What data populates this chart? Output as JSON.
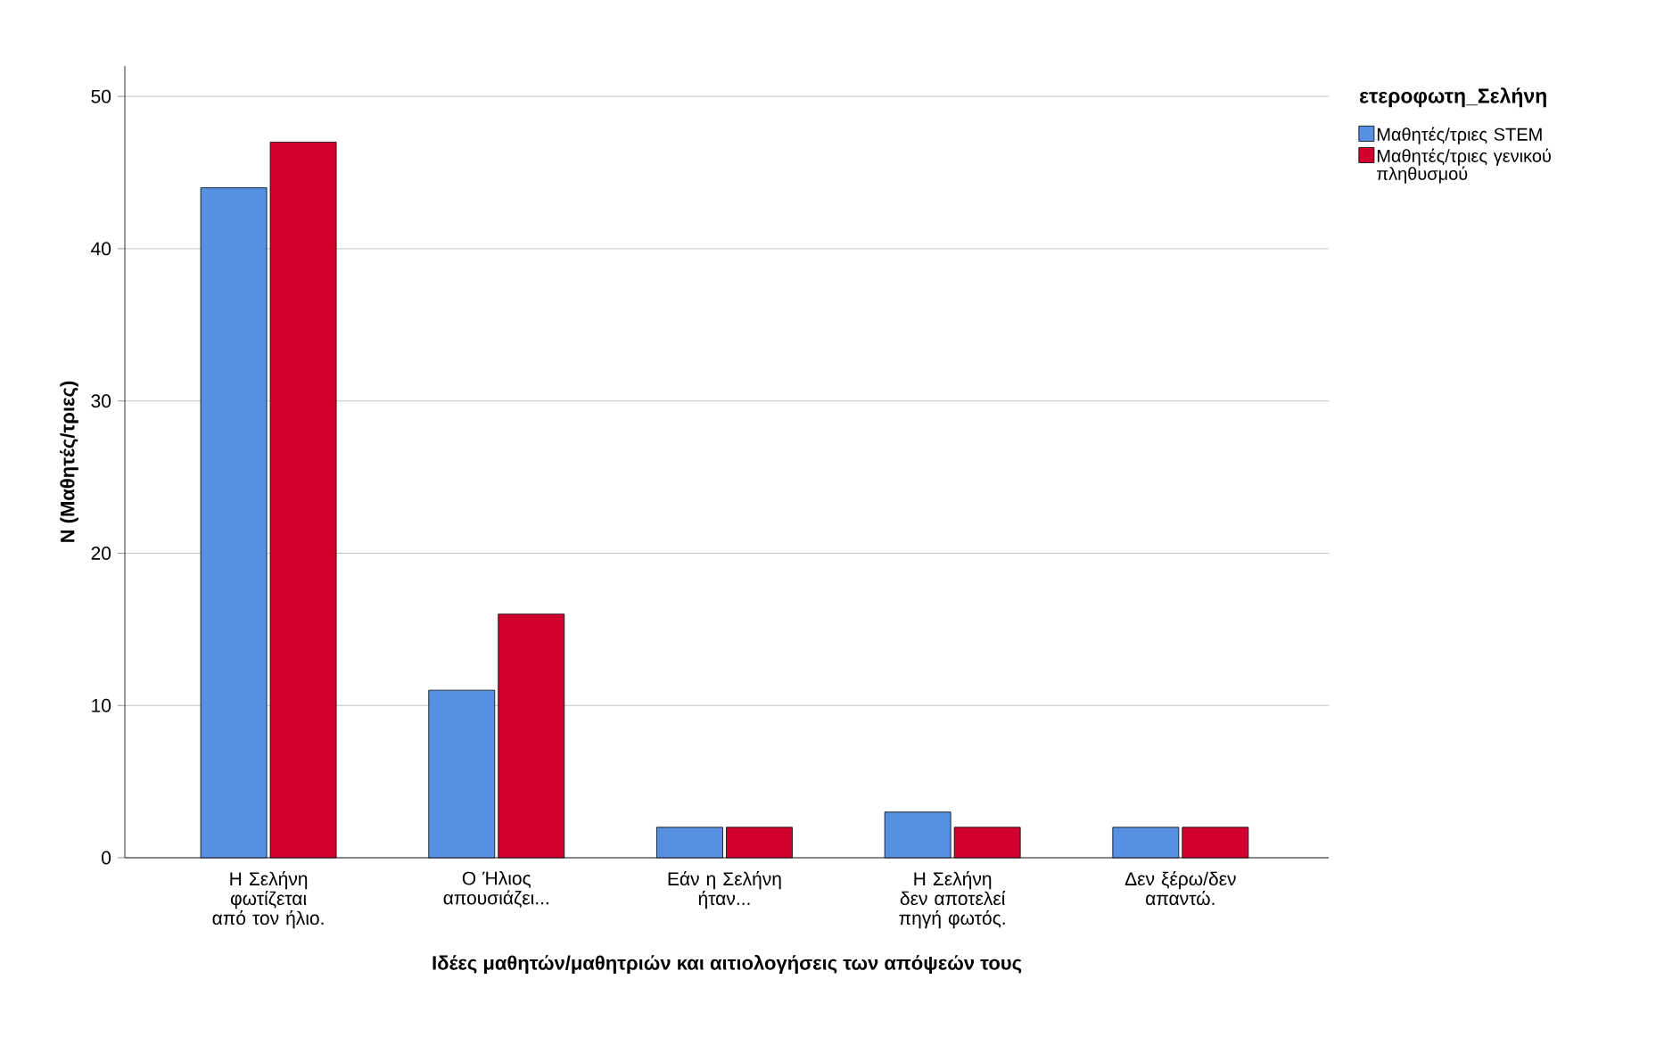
{
  "chart_data": {
    "type": "bar",
    "xlabel": "Ιδέες μαθητών/μαθητριών και αιτιολογήσεις των απόψεών τους",
    "ylabel": "N (Μαθητές/τριες)",
    "legend_title": "ετεροφωτη_Σελήνη",
    "categories": [
      "Η Σελήνη φωτίζεται από τον ήλιο.",
      "Ο Ήλιος απουσιάζει...",
      "Εάν η Σελήνη ήταν...",
      "Η Σελήνη δεν αποτελεί πηγή φωτός.",
      "Δεν ξέρω/δεν απαντώ."
    ],
    "series": [
      {
        "name": "Μαθητές/τριες STEM",
        "color": "#5591e0",
        "values": [
          44,
          11,
          2,
          3,
          2
        ]
      },
      {
        "name": "Μαθητές/τριες γενικού πληθυσμού",
        "color": "#d2002e",
        "values": [
          47,
          16,
          2,
          2,
          2
        ]
      }
    ],
    "ylim": [
      0,
      52
    ],
    "yticks": [
      0,
      10,
      20,
      30,
      40,
      50
    ],
    "grid": "y",
    "legend": "right"
  }
}
